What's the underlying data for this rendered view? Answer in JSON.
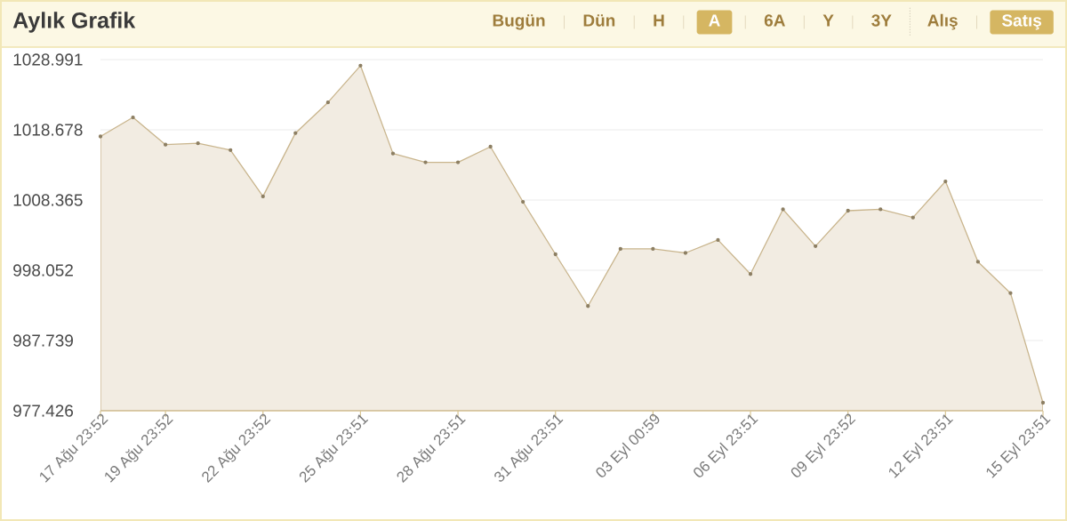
{
  "chart_data": {
    "type": "area",
    "title": "Aylık Grafik",
    "categories": [
      "17 Ağu 23:52",
      null,
      "19 Ağu 23:52",
      null,
      null,
      "22 Ağu 23:52",
      null,
      null,
      "25 Ağu 23:51",
      null,
      null,
      "28 Ağu 23:51",
      null,
      null,
      "31 Ağu 23:51",
      null,
      null,
      "03 Eyl 00:59",
      null,
      null,
      "06 Eyl 23:51",
      null,
      null,
      "09 Eyl 23:52",
      null,
      null,
      "12 Eyl 23:51",
      null,
      null,
      "15 Eyl 23:51"
    ],
    "values": [
      1017.7,
      1020.5,
      1016.5,
      1016.7,
      1015.7,
      1008.9,
      1018.2,
      1022.7,
      1028.1,
      1015.2,
      1013.9,
      1013.9,
      1016.2,
      1008.1,
      1000.4,
      992.8,
      1001.2,
      1001.2,
      1000.6,
      1002.5,
      997.5,
      1007.0,
      1001.6,
      1006.8,
      1007.0,
      1005.8,
      1011.1,
      999.3,
      994.7,
      978.6
    ],
    "color": "#c9b58d",
    "ylim": [
      977.426,
      1028.991
    ],
    "yticks": [
      977.426,
      987.739,
      998.052,
      1008.365,
      1018.678,
      1028.991
    ],
    "grid": "y",
    "marker": "circle",
    "annotations": [
      "Bugün",
      "Dün",
      "H",
      "A",
      "6A",
      "Y",
      "3Y",
      "Alış",
      "Satış"
    ]
  }
}
